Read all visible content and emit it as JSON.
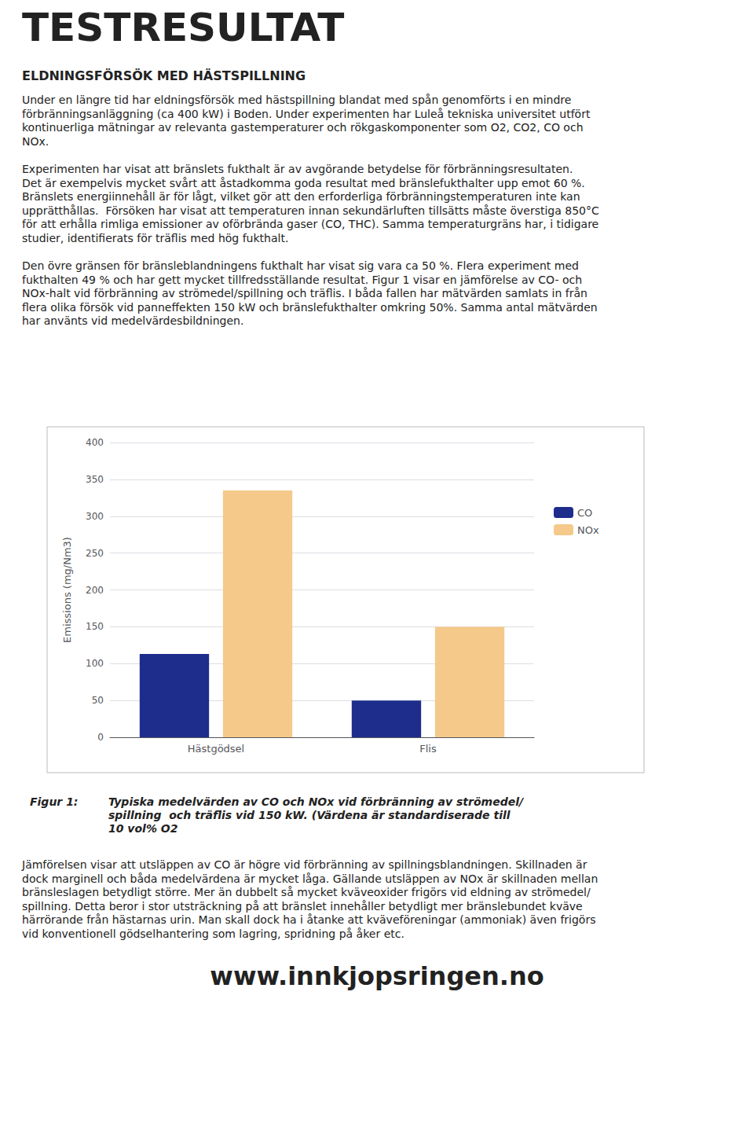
{
  "chart_data": {
    "type": "bar",
    "title": "TESTRESULTAT",
    "subtitle": "ELDNINGSFÖRSÖK MED HÄSTSPILLNING",
    "annotations": [
      [
        "Under en längre tid har eldningsförsök med hästspillning blandat med spån genomförts i en mindre",
        "förbränningsanläggning (ca 400 kW) i Boden. Under experimenten har Luleå tekniska universitet utfört",
        "kontinuerliga mätningar av relevanta gastemperaturer och rökgaskomponenter som O2, CO2, CO och",
        "NOx."
      ],
      [
        "Experimenten har visat att bränslets fukthalt är av avgörande betydelse för förbränningsresultaten.",
        "Det är exempelvis mycket svårt att åstadkomma goda resultat med bränslefukthalter upp emot 60 %.",
        "Bränslets energiinnehåll är för lågt, vilket gör att den erforderliga förbränningstemperaturen inte kan",
        "upprätthållas.  Försöken har visat att temperaturen innan sekundärluften tillsätts måste överstiga 850°C",
        "för att erhålla rimliga emissioner av oförbrända gaser (CO, THC). Samma temperaturgräns har, i tidigare",
        "studier, identifierats för träflis med hög fukthalt."
      ],
      [
        "Den övre gränsen för bränsleblandningens fukthalt har visat sig vara ca 50 %. Flera experiment med",
        "fukthalten 49 % och har gett mycket tillfredsställande resultat. Figur 1 visar en jämförelse av CO- och",
        "NOx-halt vid förbränning av strömedel/spillning och träflis. I båda fallen har mätvärden samlats in från",
        "flera olika försök vid panneffekten 150 kW och bränslefukthalter omkring 50%. Samma antal mätvärden",
        "har använts vid medelvärdesbildningen."
      ],
      [
        "Figur 1:"
      ],
      [
        "Typiska medelvärden av CO och NOx vid förbränning av strömedel/",
        "spillning  och träflis vid 150 kW. (Värdena är standardiserade till",
        "10 vol% O2"
      ],
      [
        "Jämförelsen visar att utsläppen av CO är högre vid förbränning av spillningsblandningen. Skillnaden är",
        "dock marginell och båda medelvärdena är mycket låga. Gällande utsläppen av NOx är skillnaden mellan",
        "bränsleslagen betydligt större. Mer än dubbelt så mycket kväveoxider frigörs vid eldning av strömedel/",
        "spillning. Detta beror i stor utsträckning på att bränslet innehåller betydligt mer bränslebundet kväve",
        "härrörande från hästarnas urin. Man skall dock ha i åtanke att kväveföreningar (ammoniak) även frigörs",
        "vid konventionell gödselhantering som lagring, spridning på åker etc."
      ],
      [
        "www.innkjopsringen.no"
      ]
    ],
    "categories": [
      "Hästgödsel",
      "Flis"
    ],
    "series": [
      {
        "name": "CO",
        "color": "#1e2d8c",
        "values": [
          113,
          50
        ]
      },
      {
        "name": "NOx",
        "color": "#f5c98a",
        "values": [
          335,
          150
        ]
      }
    ],
    "ylabel": "Emissions (mg/Nm3)",
    "ylim": [
      0,
      400
    ],
    "yticks": [
      0,
      50,
      100,
      150,
      200,
      250,
      300,
      350,
      400
    ],
    "grid": true,
    "legend": "right"
  }
}
